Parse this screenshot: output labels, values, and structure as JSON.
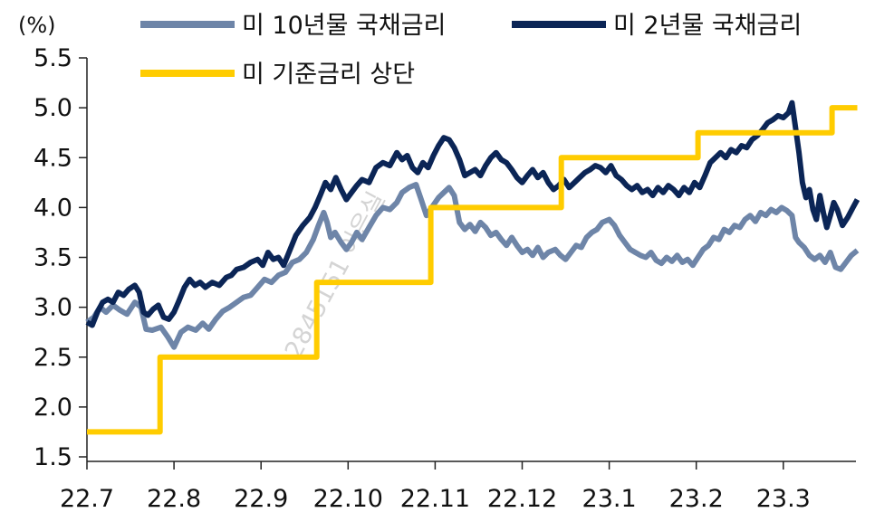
{
  "chart_data": {
    "type": "line",
    "ylabel": "(%)",
    "ylim": [
      1.5,
      5.5
    ],
    "yticks": [
      "1.5",
      "2.0",
      "2.5",
      "3.0",
      "3.5",
      "4.0",
      "4.5",
      "5.0",
      "5.5"
    ],
    "xticks": [
      "22.7",
      "22.8",
      "22.9",
      "22.10",
      "22.11",
      "22.12",
      "23.1",
      "23.2",
      "23.3"
    ],
    "xlim": [
      0,
      8.85
    ],
    "grid": false,
    "legend_position": "top",
    "watermark": "2845151 이은실",
    "series": [
      {
        "name": "미 10년물 국채금리",
        "color": "#6E85A8",
        "points": [
          [
            0.0,
            2.85
          ],
          [
            0.08,
            2.9
          ],
          [
            0.15,
            3.0
          ],
          [
            0.22,
            2.95
          ],
          [
            0.3,
            3.02
          ],
          [
            0.38,
            2.97
          ],
          [
            0.46,
            2.93
          ],
          [
            0.55,
            3.05
          ],
          [
            0.62,
            3.0
          ],
          [
            0.68,
            2.78
          ],
          [
            0.75,
            2.77
          ],
          [
            0.85,
            2.8
          ],
          [
            0.93,
            2.7
          ],
          [
            1.0,
            2.6
          ],
          [
            1.08,
            2.75
          ],
          [
            1.16,
            2.8
          ],
          [
            1.25,
            2.77
          ],
          [
            1.33,
            2.84
          ],
          [
            1.4,
            2.78
          ],
          [
            1.48,
            2.88
          ],
          [
            1.56,
            2.96
          ],
          [
            1.64,
            3.0
          ],
          [
            1.72,
            3.05
          ],
          [
            1.8,
            3.1
          ],
          [
            1.88,
            3.12
          ],
          [
            1.96,
            3.2
          ],
          [
            2.04,
            3.28
          ],
          [
            2.12,
            3.25
          ],
          [
            2.2,
            3.32
          ],
          [
            2.28,
            3.35
          ],
          [
            2.36,
            3.45
          ],
          [
            2.44,
            3.48
          ],
          [
            2.52,
            3.55
          ],
          [
            2.6,
            3.68
          ],
          [
            2.66,
            3.82
          ],
          [
            2.72,
            3.95
          ],
          [
            2.76,
            3.85
          ],
          [
            2.8,
            3.7
          ],
          [
            2.85,
            3.75
          ],
          [
            2.92,
            3.65
          ],
          [
            2.98,
            3.58
          ],
          [
            3.04,
            3.65
          ],
          [
            3.1,
            3.75
          ],
          [
            3.16,
            3.68
          ],
          [
            3.24,
            3.8
          ],
          [
            3.32,
            3.92
          ],
          [
            3.4,
            4.0
          ],
          [
            3.48,
            3.98
          ],
          [
            3.56,
            4.05
          ],
          [
            3.62,
            4.15
          ],
          [
            3.7,
            4.2
          ],
          [
            3.78,
            4.23
          ],
          [
            3.84,
            4.08
          ],
          [
            3.9,
            3.92
          ],
          [
            3.96,
            4.0
          ],
          [
            4.04,
            4.1
          ],
          [
            4.1,
            4.15
          ],
          [
            4.16,
            4.2
          ],
          [
            4.22,
            4.12
          ],
          [
            4.28,
            3.85
          ],
          [
            4.34,
            3.78
          ],
          [
            4.4,
            3.83
          ],
          [
            4.46,
            3.76
          ],
          [
            4.52,
            3.85
          ],
          [
            4.58,
            3.8
          ],
          [
            4.64,
            3.72
          ],
          [
            4.7,
            3.75
          ],
          [
            4.76,
            3.68
          ],
          [
            4.82,
            3.62
          ],
          [
            4.88,
            3.7
          ],
          [
            4.94,
            3.62
          ],
          [
            5.0,
            3.55
          ],
          [
            5.06,
            3.58
          ],
          [
            5.12,
            3.52
          ],
          [
            5.18,
            3.6
          ],
          [
            5.24,
            3.5
          ],
          [
            5.3,
            3.55
          ],
          [
            5.38,
            3.58
          ],
          [
            5.44,
            3.52
          ],
          [
            5.5,
            3.48
          ],
          [
            5.56,
            3.55
          ],
          [
            5.62,
            3.62
          ],
          [
            5.68,
            3.6
          ],
          [
            5.74,
            3.7
          ],
          [
            5.8,
            3.75
          ],
          [
            5.86,
            3.78
          ],
          [
            5.92,
            3.85
          ],
          [
            6.0,
            3.88
          ],
          [
            6.06,
            3.82
          ],
          [
            6.12,
            3.72
          ],
          [
            6.18,
            3.65
          ],
          [
            6.24,
            3.58
          ],
          [
            6.3,
            3.55
          ],
          [
            6.36,
            3.52
          ],
          [
            6.42,
            3.5
          ],
          [
            6.48,
            3.55
          ],
          [
            6.54,
            3.47
          ],
          [
            6.6,
            3.44
          ],
          [
            6.66,
            3.5
          ],
          [
            6.72,
            3.46
          ],
          [
            6.78,
            3.52
          ],
          [
            6.84,
            3.45
          ],
          [
            6.9,
            3.48
          ],
          [
            6.96,
            3.42
          ],
          [
            7.02,
            3.5
          ],
          [
            7.08,
            3.58
          ],
          [
            7.14,
            3.62
          ],
          [
            7.2,
            3.7
          ],
          [
            7.26,
            3.68
          ],
          [
            7.32,
            3.78
          ],
          [
            7.38,
            3.75
          ],
          [
            7.44,
            3.82
          ],
          [
            7.5,
            3.8
          ],
          [
            7.56,
            3.88
          ],
          [
            7.62,
            3.92
          ],
          [
            7.68,
            3.86
          ],
          [
            7.74,
            3.95
          ],
          [
            7.8,
            3.92
          ],
          [
            7.86,
            3.98
          ],
          [
            7.92,
            3.95
          ],
          [
            7.98,
            4.0
          ],
          [
            8.04,
            3.97
          ],
          [
            8.1,
            3.92
          ],
          [
            8.14,
            3.7
          ],
          [
            8.18,
            3.65
          ],
          [
            8.24,
            3.6
          ],
          [
            8.3,
            3.52
          ],
          [
            8.36,
            3.48
          ],
          [
            8.42,
            3.52
          ],
          [
            8.48,
            3.45
          ],
          [
            8.54,
            3.55
          ],
          [
            8.6,
            3.4
          ],
          [
            8.66,
            3.38
          ],
          [
            8.72,
            3.45
          ],
          [
            8.78,
            3.52
          ],
          [
            8.85,
            3.57
          ]
        ]
      },
      {
        "name": "미 2년물 국채금리",
        "color": "#0B2556",
        "points": [
          [
            0.0,
            2.85
          ],
          [
            0.06,
            2.82
          ],
          [
            0.12,
            2.95
          ],
          [
            0.18,
            3.05
          ],
          [
            0.24,
            3.08
          ],
          [
            0.3,
            3.05
          ],
          [
            0.36,
            3.15
          ],
          [
            0.42,
            3.12
          ],
          [
            0.48,
            3.18
          ],
          [
            0.55,
            3.22
          ],
          [
            0.6,
            3.15
          ],
          [
            0.65,
            2.95
          ],
          [
            0.7,
            2.92
          ],
          [
            0.76,
            2.98
          ],
          [
            0.82,
            3.02
          ],
          [
            0.88,
            2.9
          ],
          [
            0.94,
            2.88
          ],
          [
            1.0,
            2.95
          ],
          [
            1.05,
            3.05
          ],
          [
            1.12,
            3.2
          ],
          [
            1.18,
            3.28
          ],
          [
            1.24,
            3.22
          ],
          [
            1.3,
            3.25
          ],
          [
            1.36,
            3.2
          ],
          [
            1.44,
            3.25
          ],
          [
            1.52,
            3.22
          ],
          [
            1.6,
            3.3
          ],
          [
            1.66,
            3.32
          ],
          [
            1.72,
            3.38
          ],
          [
            1.8,
            3.4
          ],
          [
            1.88,
            3.45
          ],
          [
            1.96,
            3.48
          ],
          [
            2.02,
            3.42
          ],
          [
            2.08,
            3.55
          ],
          [
            2.14,
            3.48
          ],
          [
            2.2,
            3.5
          ],
          [
            2.26,
            3.42
          ],
          [
            2.32,
            3.55
          ],
          [
            2.4,
            3.72
          ],
          [
            2.48,
            3.82
          ],
          [
            2.56,
            3.9
          ],
          [
            2.62,
            4.0
          ],
          [
            2.68,
            4.12
          ],
          [
            2.74,
            4.25
          ],
          [
            2.8,
            4.18
          ],
          [
            2.86,
            4.3
          ],
          [
            2.92,
            4.18
          ],
          [
            2.98,
            4.08
          ],
          [
            3.04,
            4.15
          ],
          [
            3.1,
            4.22
          ],
          [
            3.16,
            4.28
          ],
          [
            3.24,
            4.25
          ],
          [
            3.32,
            4.4
          ],
          [
            3.4,
            4.45
          ],
          [
            3.48,
            4.42
          ],
          [
            3.56,
            4.55
          ],
          [
            3.62,
            4.48
          ],
          [
            3.68,
            4.52
          ],
          [
            3.74,
            4.4
          ],
          [
            3.8,
            4.35
          ],
          [
            3.86,
            4.45
          ],
          [
            3.92,
            4.4
          ],
          [
            3.98,
            4.52
          ],
          [
            4.04,
            4.62
          ],
          [
            4.1,
            4.7
          ],
          [
            4.16,
            4.68
          ],
          [
            4.22,
            4.6
          ],
          [
            4.28,
            4.48
          ],
          [
            4.34,
            4.32
          ],
          [
            4.4,
            4.35
          ],
          [
            4.46,
            4.38
          ],
          [
            4.52,
            4.32
          ],
          [
            4.58,
            4.42
          ],
          [
            4.64,
            4.5
          ],
          [
            4.7,
            4.55
          ],
          [
            4.76,
            4.48
          ],
          [
            4.82,
            4.45
          ],
          [
            4.88,
            4.38
          ],
          [
            4.94,
            4.3
          ],
          [
            5.0,
            4.25
          ],
          [
            5.06,
            4.32
          ],
          [
            5.12,
            4.38
          ],
          [
            5.18,
            4.3
          ],
          [
            5.24,
            4.35
          ],
          [
            5.3,
            4.25
          ],
          [
            5.36,
            4.18
          ],
          [
            5.42,
            4.22
          ],
          [
            5.48,
            4.28
          ],
          [
            5.54,
            4.2
          ],
          [
            5.6,
            4.25
          ],
          [
            5.66,
            4.3
          ],
          [
            5.72,
            4.35
          ],
          [
            5.78,
            4.38
          ],
          [
            5.84,
            4.42
          ],
          [
            5.9,
            4.4
          ],
          [
            5.96,
            4.35
          ],
          [
            6.02,
            4.42
          ],
          [
            6.08,
            4.32
          ],
          [
            6.14,
            4.28
          ],
          [
            6.2,
            4.22
          ],
          [
            6.26,
            4.18
          ],
          [
            6.32,
            4.22
          ],
          [
            6.38,
            4.15
          ],
          [
            6.44,
            4.18
          ],
          [
            6.5,
            4.12
          ],
          [
            6.56,
            4.2
          ],
          [
            6.62,
            4.15
          ],
          [
            6.68,
            4.22
          ],
          [
            6.74,
            4.18
          ],
          [
            6.8,
            4.12
          ],
          [
            6.86,
            4.2
          ],
          [
            6.92,
            4.15
          ],
          [
            6.98,
            4.25
          ],
          [
            7.04,
            4.2
          ],
          [
            7.1,
            4.32
          ],
          [
            7.16,
            4.45
          ],
          [
            7.22,
            4.5
          ],
          [
            7.28,
            4.55
          ],
          [
            7.34,
            4.5
          ],
          [
            7.4,
            4.58
          ],
          [
            7.46,
            4.55
          ],
          [
            7.52,
            4.62
          ],
          [
            7.58,
            4.6
          ],
          [
            7.64,
            4.68
          ],
          [
            7.7,
            4.72
          ],
          [
            7.76,
            4.78
          ],
          [
            7.82,
            4.85
          ],
          [
            7.88,
            4.88
          ],
          [
            7.94,
            4.92
          ],
          [
            8.0,
            4.9
          ],
          [
            8.06,
            4.95
          ],
          [
            8.1,
            5.05
          ],
          [
            8.14,
            4.8
          ],
          [
            8.18,
            4.55
          ],
          [
            8.22,
            4.25
          ],
          [
            8.26,
            4.1
          ],
          [
            8.3,
            4.18
          ],
          [
            8.34,
            3.98
          ],
          [
            8.38,
            3.88
          ],
          [
            8.42,
            4.12
          ],
          [
            8.46,
            3.95
          ],
          [
            8.5,
            3.8
          ],
          [
            8.54,
            3.92
          ],
          [
            8.58,
            4.05
          ],
          [
            8.62,
            3.98
          ],
          [
            8.68,
            3.82
          ],
          [
            8.74,
            3.9
          ],
          [
            8.8,
            4.0
          ],
          [
            8.85,
            4.08
          ]
        ]
      },
      {
        "name": "미 기준금리 상단",
        "color": "#FFCC00",
        "points": [
          [
            0.0,
            1.75
          ],
          [
            0.84,
            1.75
          ],
          [
            0.84,
            2.5
          ],
          [
            2.64,
            2.5
          ],
          [
            2.64,
            3.25
          ],
          [
            3.95,
            3.25
          ],
          [
            3.95,
            4.0
          ],
          [
            5.45,
            4.0
          ],
          [
            5.45,
            4.5
          ],
          [
            7.02,
            4.5
          ],
          [
            7.02,
            4.75
          ],
          [
            8.56,
            4.75
          ],
          [
            8.56,
            5.0
          ],
          [
            8.85,
            5.0
          ]
        ]
      }
    ]
  }
}
